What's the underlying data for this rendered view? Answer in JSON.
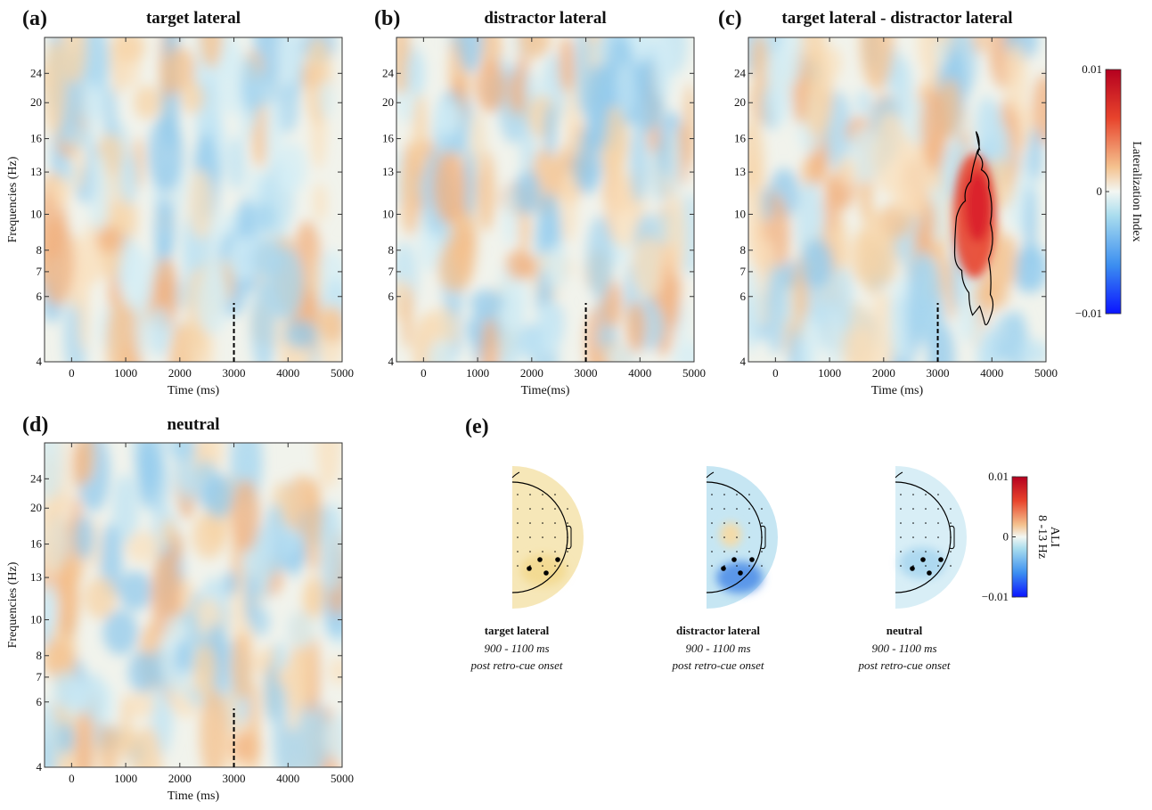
{
  "figure_labels": [
    "(a)",
    "(b)",
    "(c)",
    "(d)",
    "(e)"
  ],
  "chart_data": [
    {
      "type": "heatmap",
      "title": "target lateral",
      "xlabel": "Time (ms)",
      "ylabel": "Frequencies (Hz)",
      "xlim": [
        -500,
        5000
      ],
      "xticks": [
        0,
        1000,
        2000,
        3000,
        4000,
        5000
      ],
      "ylim": [
        4,
        30
      ],
      "yticks": [
        4,
        6,
        7,
        8,
        10,
        13,
        16,
        20,
        24
      ],
      "ylog": true,
      "vline_x": 3000
    },
    {
      "type": "heatmap",
      "title": "distractor lateral",
      "xlabel": "Time(ms)",
      "xlim": [
        -500,
        5000
      ],
      "xticks": [
        0,
        1000,
        2000,
        3000,
        4000,
        5000
      ],
      "ylim": [
        4,
        30
      ],
      "yticks": [
        4,
        6,
        7,
        8,
        10,
        13,
        16,
        20,
        24
      ],
      "ylog": true,
      "vline_x": 3000
    },
    {
      "type": "heatmap",
      "title": "target lateral - distractor lateral",
      "xlabel": "Time (ms)",
      "xlim": [
        -500,
        5000
      ],
      "xticks": [
        0,
        1000,
        2000,
        3000,
        4000,
        5000
      ],
      "ylim": [
        4,
        30
      ],
      "yticks": [
        4,
        6,
        7,
        8,
        10,
        13,
        16,
        20,
        24
      ],
      "ylog": true,
      "vline_x": 3000
    },
    {
      "type": "heatmap",
      "title": "neutral",
      "xlabel": "Time (ms)",
      "ylabel": "Frequencies (Hz)",
      "xlim": [
        -500,
        5000
      ],
      "xticks": [
        0,
        1000,
        2000,
        3000,
        4000,
        5000
      ],
      "ylim": [
        4,
        30
      ],
      "yticks": [
        4,
        6,
        7,
        8,
        10,
        13,
        16,
        20,
        24
      ],
      "ylog": true,
      "vline_x": 3000
    }
  ],
  "colorbars": [
    {
      "label": "Lateralization Index",
      "lim": [
        -0.01,
        0.01
      ],
      "ticks": [
        {
          "value": -0.01,
          "label": "−0.01"
        },
        0,
        0.01
      ]
    },
    {
      "label": "ALI",
      "sublabel": "8 -13 Hz",
      "lim": [
        -0.01,
        0.01
      ],
      "ticks": [
        {
          "value": -0.01,
          "label": "−0.01"
        },
        0,
        0.01
      ]
    }
  ],
  "topomaps": [
    {
      "condition": "target lateral",
      "window": "900 - 1100 ms",
      "caption": "post retro-cue onset"
    },
    {
      "condition": "distractor lateral",
      "window": "900 - 1100 ms",
      "caption": "post retro-cue onset"
    },
    {
      "condition": "neutral",
      "window": "900 - 1100 ms",
      "caption": "post retro-cue onset"
    }
  ]
}
